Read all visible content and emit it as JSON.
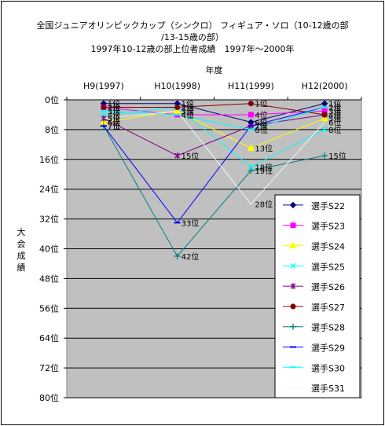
{
  "chart_data": {
    "type": "line",
    "title_lines": [
      "全国ジュニアオリンピックカップ（シンクロ） フィギュア・ソロ（10-12歳の部",
      "/13-15歳の部）",
      "1997年10-12歳の部上位者成績　1997年～2000年"
    ],
    "xlabel": "年度",
    "ylabel": "大会成績",
    "categories": [
      "H9(1997)",
      "H10(1998)",
      "H11(1999)",
      "H12(2000)"
    ],
    "y_ticks": [
      "0位",
      "8位",
      "16位",
      "24位",
      "32位",
      "40位",
      "48位",
      "56位",
      "64位",
      "72位",
      "80位"
    ],
    "ylim": [
      0,
      80
    ],
    "y_reversed": true,
    "grid": true,
    "legend_position": "right",
    "series": [
      {
        "name": "選手S22",
        "color": "#000080",
        "marker": "diamond",
        "values": [
          1,
          1,
          6,
          1
        ],
        "labels": [
          "1位",
          "1位",
          "6位",
          "1位"
        ]
      },
      {
        "name": "選手S23",
        "color": "#ff00ff",
        "marker": "square",
        "values": [
          2,
          4,
          4,
          3
        ],
        "labels": [
          "2位",
          "4位",
          "4位",
          "3位"
        ]
      },
      {
        "name": "選手S24",
        "color": "#ffff00",
        "marker": "triangle",
        "values": [
          6,
          3,
          13,
          5
        ],
        "labels": [
          "6位",
          "3位",
          "13位",
          "5位"
        ]
      },
      {
        "name": "選手S25",
        "color": "#00ffff",
        "marker": "x",
        "values": [
          4,
          2,
          18,
          8
        ],
        "labels": [
          "4位",
          "2位",
          "18位",
          "8位"
        ]
      },
      {
        "name": "選手S26",
        "color": "#800080",
        "marker": "star",
        "values": [
          5,
          15,
          7,
          4
        ],
        "labels": [
          "5位",
          "15位",
          "7位",
          "4位"
        ]
      },
      {
        "name": "選手S27",
        "color": "#800000",
        "marker": "circle",
        "values": [
          2,
          2,
          1,
          4
        ],
        "labels": [
          "2位",
          "2位",
          "1位",
          "4位"
        ]
      },
      {
        "name": "選手S28",
        "color": "#008080",
        "marker": "plus",
        "values": [
          7,
          42,
          19,
          15
        ],
        "labels": [
          "7位",
          "42位",
          "19位",
          "15位"
        ]
      },
      {
        "name": "選手S29",
        "color": "#0000ff",
        "marker": "dash",
        "values": [
          7,
          33,
          7,
          2
        ],
        "labels": [
          "7位",
          "33位",
          "7位",
          "2位"
        ]
      },
      {
        "name": "選手S30",
        "color": "#00ffff",
        "marker": "dash",
        "values": [
          3,
          4,
          8,
          2
        ],
        "labels": [
          "3位",
          "4位",
          "8位",
          "2位"
        ]
      },
      {
        "name": "選手S31",
        "color": "#e8f8ff",
        "marker": "none",
        "values": [
          5,
          3,
          28,
          6
        ],
        "labels": [
          "5位",
          "3位",
          "28位",
          "6位"
        ]
      }
    ]
  }
}
